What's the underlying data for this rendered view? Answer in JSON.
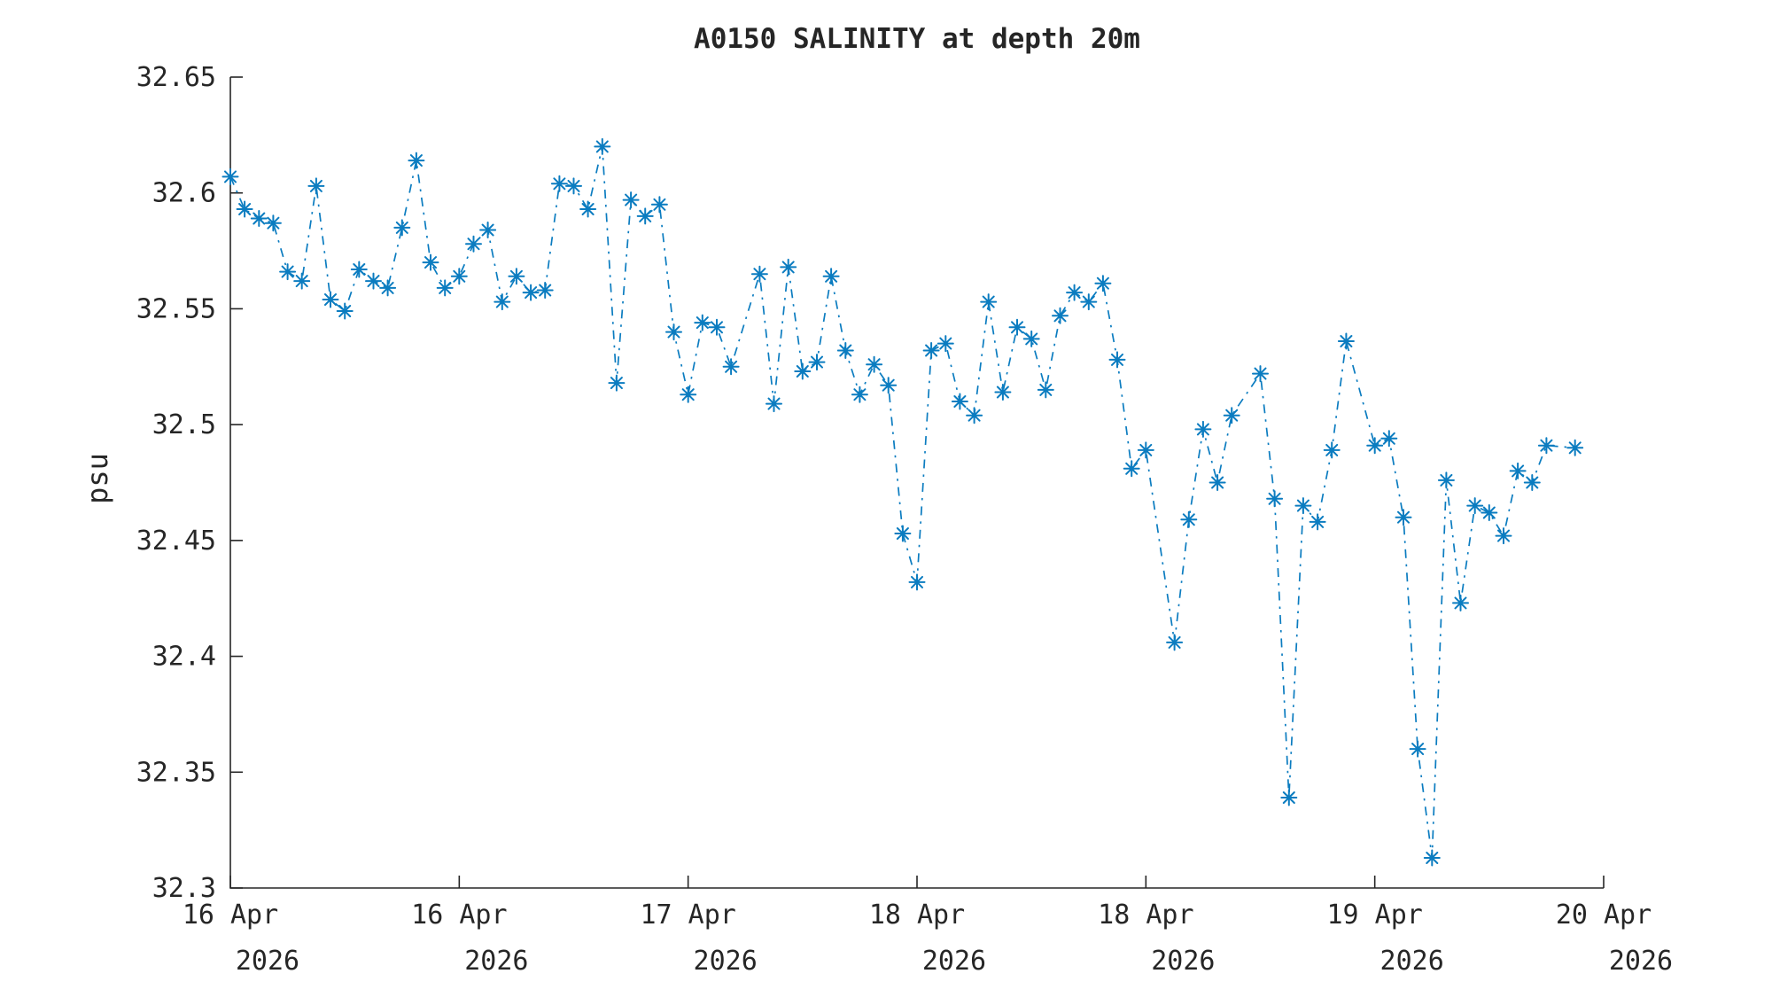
{
  "window": {
    "background": "#ffffff"
  },
  "style": {
    "axis_color": "#262626",
    "text_color": "#262626",
    "series_color": "#0b7cc0",
    "plot_background": "#ffffff"
  },
  "chart_data": {
    "type": "line",
    "title": "A0150 SALINITY at depth 20m",
    "xlabel": "",
    "ylabel": "psu",
    "legend": "none",
    "grid": false,
    "x_unit": "hours since 16 Apr 2026 00:00",
    "xlim_hours": [
      0,
      96
    ],
    "ylim": [
      32.3,
      32.65
    ],
    "y_ticks": [
      32.3,
      32.35,
      32.4,
      32.45,
      32.5,
      32.55,
      32.6,
      32.65
    ],
    "y_tick_labels": [
      "32.3",
      "32.35",
      "32.4",
      "32.45",
      "32.5",
      "32.55",
      "32.6",
      "32.65"
    ],
    "x_ticks": [
      {
        "hour": 0,
        "day": "16 Apr",
        "year": "2026"
      },
      {
        "hour": 16,
        "day": "16 Apr",
        "year": "2026"
      },
      {
        "hour": 32,
        "day": "17 Apr",
        "year": "2026"
      },
      {
        "hour": 48,
        "day": "18 Apr",
        "year": "2026"
      },
      {
        "hour": 64,
        "day": "18 Apr",
        "year": "2026"
      },
      {
        "hour": 80,
        "day": "19 Apr",
        "year": "2026"
      },
      {
        "hour": 96,
        "day": "20 Apr",
        "year": "2026"
      }
    ],
    "series": [
      {
        "name": "salinity",
        "color": "#0b7cc0",
        "line_style": "dash-dot",
        "marker": "asterisk",
        "points": [
          [
            0,
            32.607
          ],
          [
            1,
            32.593
          ],
          [
            2,
            32.589
          ],
          [
            3,
            32.587
          ],
          [
            4,
            32.566
          ],
          [
            5,
            32.562
          ],
          [
            6,
            32.603
          ],
          [
            7,
            32.554
          ],
          [
            8,
            32.549
          ],
          [
            9,
            32.567
          ],
          [
            10,
            32.562
          ],
          [
            11,
            32.559
          ],
          [
            12,
            32.585
          ],
          [
            13,
            32.614
          ],
          [
            14,
            32.57
          ],
          [
            15,
            32.559
          ],
          [
            16,
            32.564
          ],
          [
            17,
            32.578
          ],
          [
            18,
            32.584
          ],
          [
            19,
            32.553
          ],
          [
            20,
            32.564
          ],
          [
            21,
            32.557
          ],
          [
            22,
            32.558
          ],
          [
            23,
            32.604
          ],
          [
            24,
            32.603
          ],
          [
            25,
            32.593
          ],
          [
            26,
            32.62
          ],
          [
            27,
            32.518
          ],
          [
            28,
            32.597
          ],
          [
            29,
            32.59
          ],
          [
            30,
            32.595
          ],
          [
            31,
            32.54
          ],
          [
            32,
            32.513
          ],
          [
            33,
            32.544
          ],
          [
            34,
            32.542
          ],
          [
            35,
            32.525
          ],
          [
            37,
            32.565
          ],
          [
            38,
            32.509
          ],
          [
            39,
            32.568
          ],
          [
            40,
            32.523
          ],
          [
            41,
            32.527
          ],
          [
            42,
            32.564
          ],
          [
            43,
            32.532
          ],
          [
            44,
            32.513
          ],
          [
            45,
            32.526
          ],
          [
            46,
            32.517
          ],
          [
            47,
            32.453
          ],
          [
            48,
            32.432
          ],
          [
            49,
            32.532
          ],
          [
            50,
            32.535
          ],
          [
            51,
            32.51
          ],
          [
            52,
            32.504
          ],
          [
            53,
            32.553
          ],
          [
            54,
            32.514
          ],
          [
            55,
            32.542
          ],
          [
            56,
            32.537
          ],
          [
            57,
            32.515
          ],
          [
            58,
            32.547
          ],
          [
            59,
            32.557
          ],
          [
            60,
            32.553
          ],
          [
            61,
            32.561
          ],
          [
            62,
            32.528
          ],
          [
            63,
            32.481
          ],
          [
            64,
            32.489
          ],
          [
            66,
            32.406
          ],
          [
            67,
            32.459
          ],
          [
            68,
            32.498
          ],
          [
            69,
            32.475
          ],
          [
            70,
            32.504
          ],
          [
            72,
            32.522
          ],
          [
            73,
            32.468
          ],
          [
            74,
            32.339
          ],
          [
            75,
            32.465
          ],
          [
            76,
            32.458
          ],
          [
            77,
            32.489
          ],
          [
            78,
            32.536
          ],
          [
            80,
            32.491
          ],
          [
            81,
            32.494
          ],
          [
            82,
            32.46
          ],
          [
            83,
            32.36
          ],
          [
            84,
            32.313
          ],
          [
            85,
            32.476
          ],
          [
            86,
            32.423
          ],
          [
            87,
            32.465
          ],
          [
            88,
            32.462
          ],
          [
            89,
            32.452
          ],
          [
            90,
            32.48
          ],
          [
            91,
            32.475
          ],
          [
            92,
            32.491
          ],
          [
            94,
            32.49
          ]
        ]
      }
    ]
  }
}
